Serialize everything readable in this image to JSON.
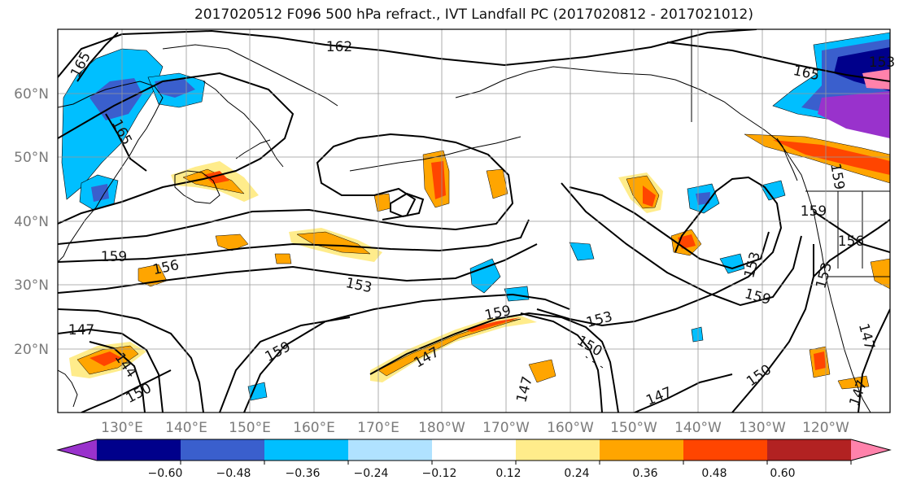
{
  "title": "2017020512 F096 500 hPa refract., IVT Landfall PC (2017020812 - 2017021012)",
  "lat_labels": [
    "60°N",
    "50°N",
    "40°N",
    "30°N",
    "20°N"
  ],
  "lon_labels": [
    "130°E",
    "140°E",
    "150°E",
    "160°E",
    "170°E",
    "180°W",
    "170°W",
    "160°W",
    "150°W",
    "140°W",
    "130°W",
    "120°W"
  ],
  "contour_labels": [
    "162",
    "165",
    "165",
    "165",
    "159",
    "156",
    "153",
    "153",
    "159",
    "147",
    "144",
    "150",
    "159",
    "147",
    "159",
    "153",
    "150",
    "147",
    "147",
    "150",
    "153",
    "159",
    "159",
    "156",
    "153",
    "147",
    "147"
  ],
  "colorbar": {
    "ticks": [
      "−0.60",
      "−0.48",
      "−0.36",
      "−0.24",
      "−0.12",
      "0.12",
      "0.24",
      "0.36",
      "0.48",
      "0.60"
    ],
    "colors": [
      "#9932cc",
      "#00008b",
      "#3a5fcd",
      "#00bfff",
      "#b0e2ff",
      "#ffffff",
      "#ffec8b",
      "#ffa500",
      "#ff4500",
      "#b22222",
      "#ff82ab"
    ]
  },
  "fill_colors": {
    "blue_light": "#00bfff",
    "blue_mid": "#3a5fcd",
    "blue_dark": "#00008b",
    "purple": "#9932cc",
    "yellow": "#ffec8b",
    "orange": "#ffa500",
    "red": "#ff4500"
  }
}
